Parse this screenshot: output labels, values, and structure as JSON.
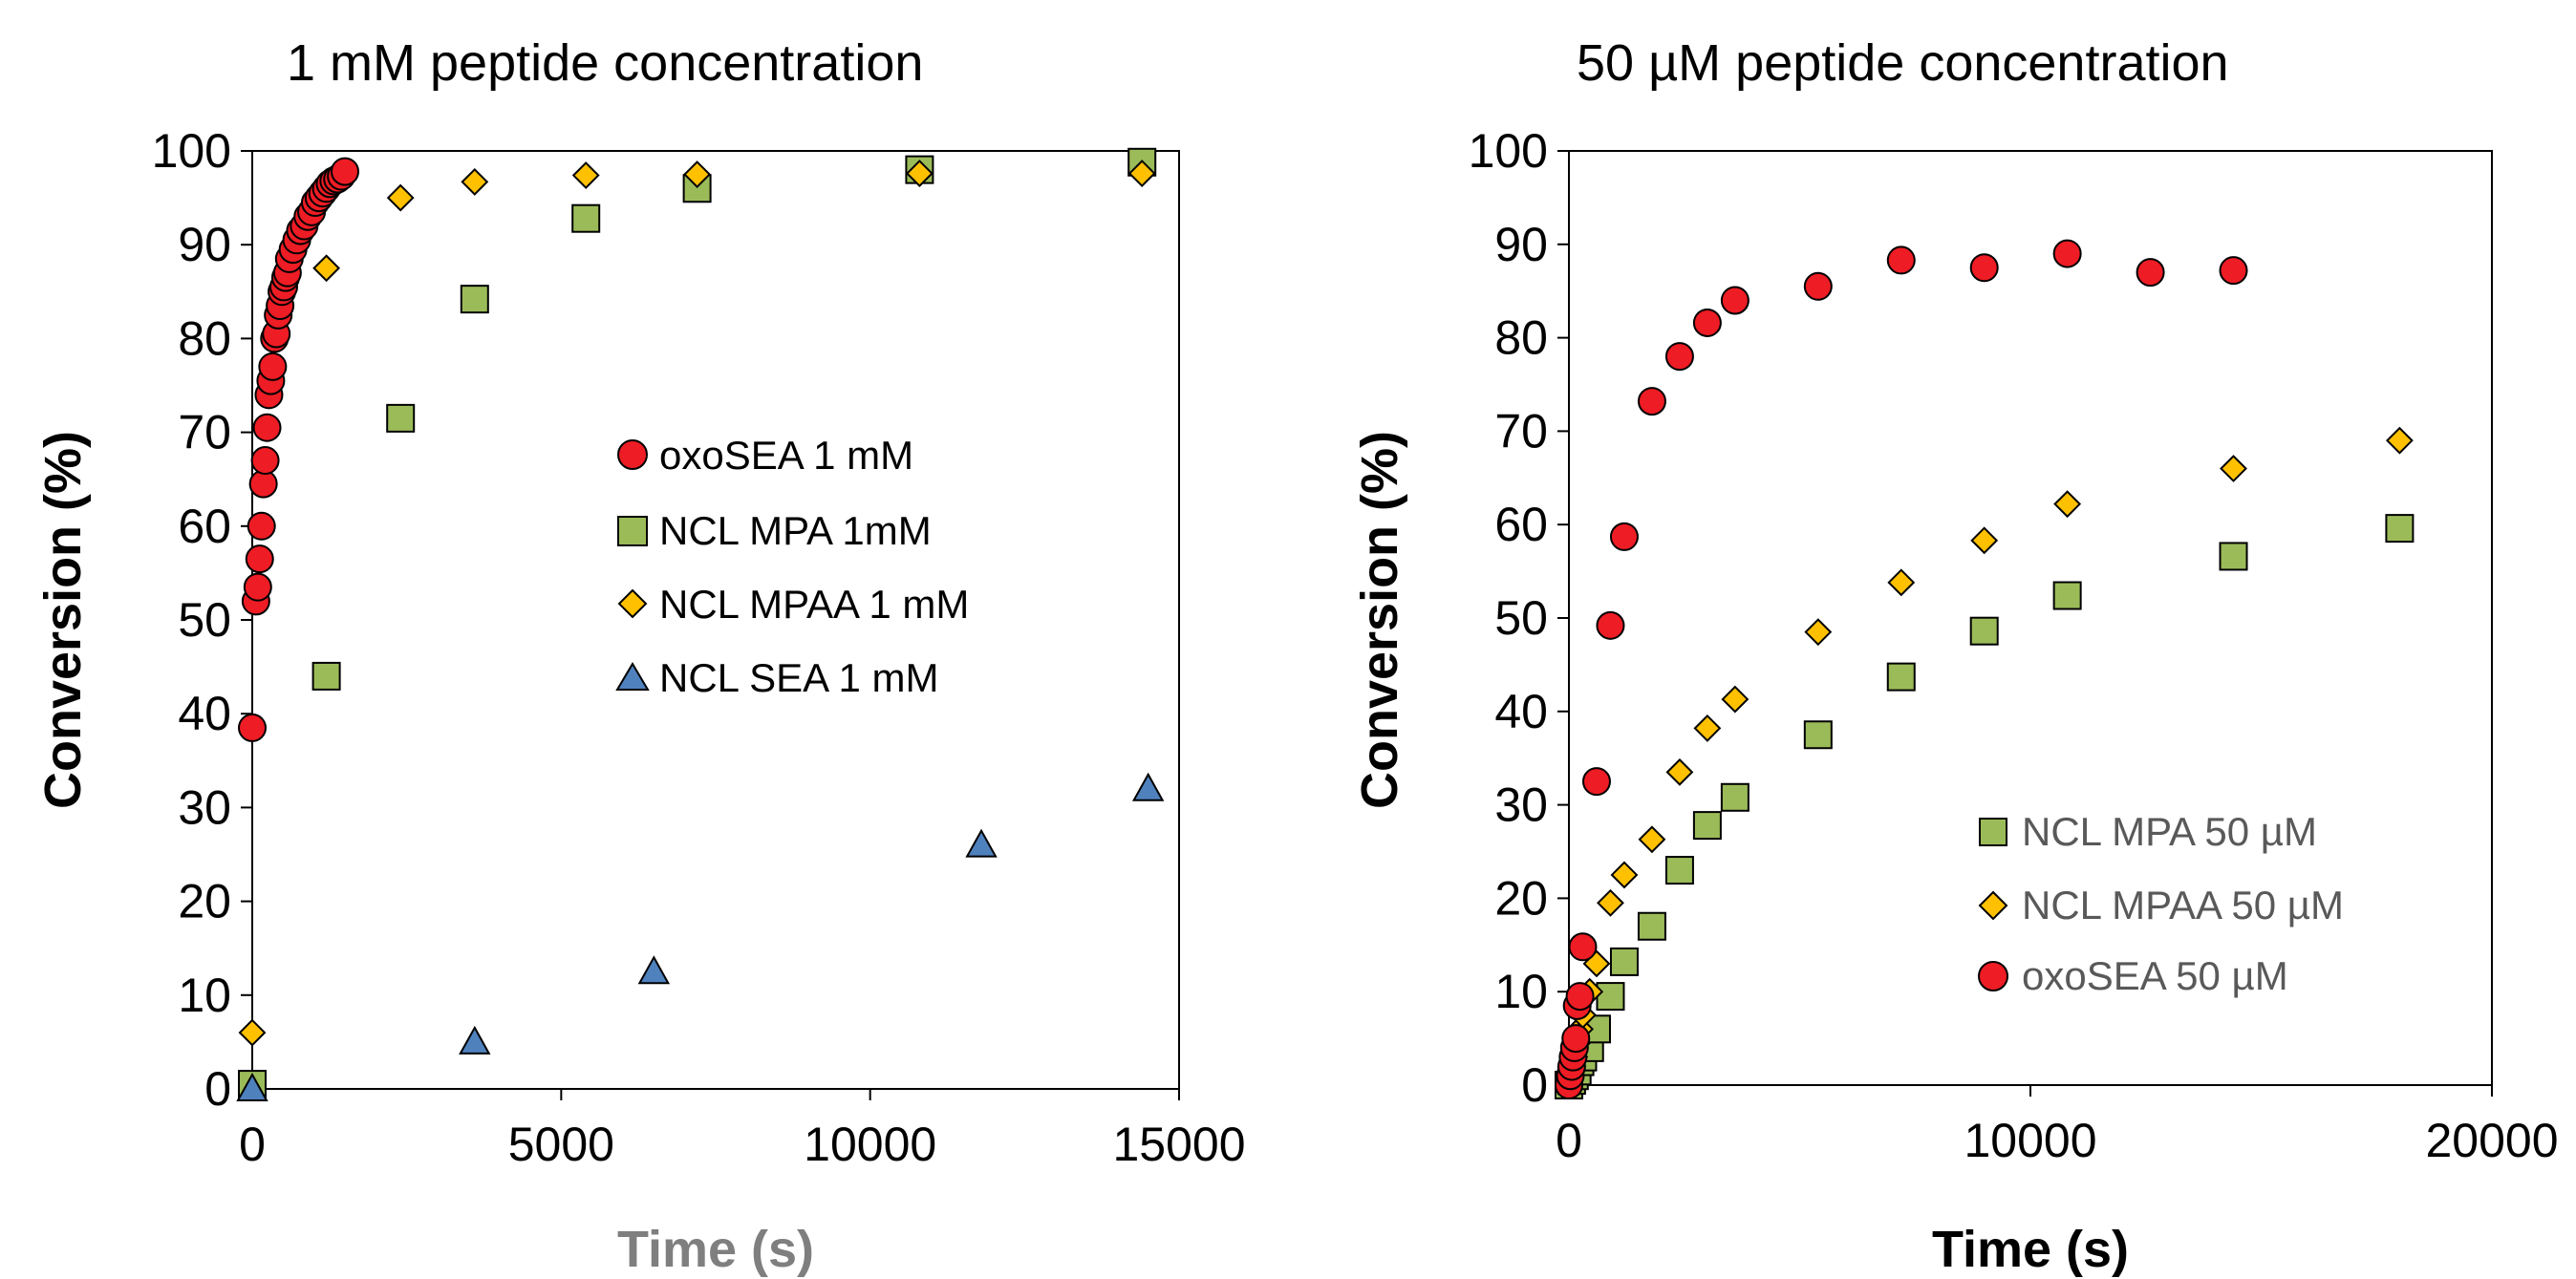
{
  "chart_data": [
    {
      "type": "scatter",
      "title": "1 mM peptide concentration",
      "xlabel": "Time (s)",
      "ylabel": "Conversion (%)",
      "xlim": [
        0,
        15000
      ],
      "ylim": [
        0,
        100
      ],
      "xticks": [
        "0",
        "5000",
        "10000",
        "15000"
      ],
      "yticks": [
        "0",
        "10",
        "20",
        "30",
        "40",
        "50",
        "60",
        "70",
        "80",
        "90",
        "100"
      ],
      "grid": false,
      "legend_position": "center",
      "series": [
        {
          "name": "oxoSEA 1 mM",
          "marker": "circle",
          "color": "#ee1c24",
          "x": [
            0,
            60,
            90,
            120,
            150,
            180,
            210,
            240,
            270,
            300,
            330,
            360,
            390,
            420,
            450,
            480,
            510,
            540,
            570,
            600,
            660,
            720,
            780,
            840,
            900,
            960,
            1020,
            1080,
            1140,
            1200,
            1260,
            1320,
            1380,
            1440,
            1500
          ],
          "y": [
            38.5,
            52,
            53.5,
            56.5,
            60,
            64.5,
            67,
            70.5,
            74,
            75.5,
            77,
            80,
            80.5,
            82.5,
            83.5,
            85,
            85.5,
            86.5,
            87,
            88.5,
            89.5,
            90.5,
            91.5,
            92,
            93,
            93.5,
            94.5,
            95,
            95.5,
            96,
            96.5,
            96.8,
            97,
            97.3,
            97.8
          ]
        },
        {
          "name": "NCL MPA 1mM",
          "marker": "square",
          "color": "#9bbb59",
          "x": [
            0,
            1200,
            2400,
            3600,
            5400,
            7200,
            10800,
            14400
          ],
          "y": [
            0.5,
            44,
            71.5,
            84.2,
            92.8,
            96,
            98,
            98.8
          ]
        },
        {
          "name": "NCL MPAA 1 mM",
          "marker": "diamond",
          "color": "#ffc000",
          "x": [
            0,
            1200,
            2400,
            3600,
            5400,
            7200,
            10800,
            14400
          ],
          "y": [
            6,
            87.5,
            95,
            96.7,
            97.4,
            97.5,
            97.6,
            97.6
          ]
        },
        {
          "name": "NCL SEA 1 mM",
          "marker": "triangle",
          "color": "#4f81bd",
          "x": [
            0,
            3600,
            6500,
            11800,
            14500
          ],
          "y": [
            0,
            5,
            12.5,
            26,
            32
          ]
        }
      ]
    },
    {
      "type": "scatter",
      "title": "50 µM peptide concentration",
      "xlabel": "Time (s)",
      "ylabel": "Conversion (%)",
      "xlim": [
        0,
        20000
      ],
      "ylim": [
        0,
        100
      ],
      "xticks": [
        "0",
        "10000",
        "20000"
      ],
      "yticks": [
        "0",
        "10",
        "20",
        "30",
        "40",
        "50",
        "60",
        "70",
        "80",
        "90",
        "100"
      ],
      "grid": false,
      "legend_position": "bottom-right",
      "series": [
        {
          "name": "NCL MPA 50 µM",
          "marker": "square",
          "color": "#9bbb59",
          "x": [
            0,
            60,
            120,
            180,
            240,
            300,
            450,
            600,
            900,
            1200,
            1800,
            2400,
            3000,
            3600,
            5400,
            7200,
            9000,
            10800,
            14400,
            18000
          ],
          "y": [
            0,
            0.5,
            1,
            1.5,
            2.5,
            3,
            4,
            6,
            9.5,
            13.2,
            17,
            23,
            27.8,
            30.8,
            37.5,
            43.7,
            48.6,
            52.4,
            56.6,
            59.6
          ]
        },
        {
          "name": "NCL MPAA 50 µM",
          "marker": "diamond",
          "color": "#ffc000",
          "x": [
            0,
            60,
            120,
            180,
            240,
            300,
            450,
            600,
            900,
            1200,
            1800,
            2400,
            3000,
            3600,
            5400,
            7200,
            9000,
            10800,
            14400,
            18000
          ],
          "y": [
            0,
            1.5,
            3,
            4.5,
            6,
            7.5,
            10,
            13,
            19.5,
            22.5,
            26.3,
            33.5,
            38.2,
            41.3,
            48.5,
            53.8,
            58.3,
            62.2,
            66,
            69
          ]
        },
        {
          "name": "oxoSEA 50 µM",
          "marker": "circle",
          "color": "#ee1c24",
          "x": [
            0,
            30,
            60,
            90,
            120,
            150,
            180,
            240,
            300,
            600,
            900,
            1200,
            1800,
            2400,
            3000,
            3600,
            5400,
            7200,
            9000,
            10800,
            12600,
            14400
          ],
          "y": [
            0,
            1,
            2,
            3,
            4,
            5,
            8.5,
            9.5,
            14.8,
            32.5,
            49.2,
            58.7,
            73.2,
            78,
            81.6,
            84,
            85.5,
            88.3,
            87.5,
            89,
            87,
            87.2
          ]
        }
      ]
    }
  ]
}
